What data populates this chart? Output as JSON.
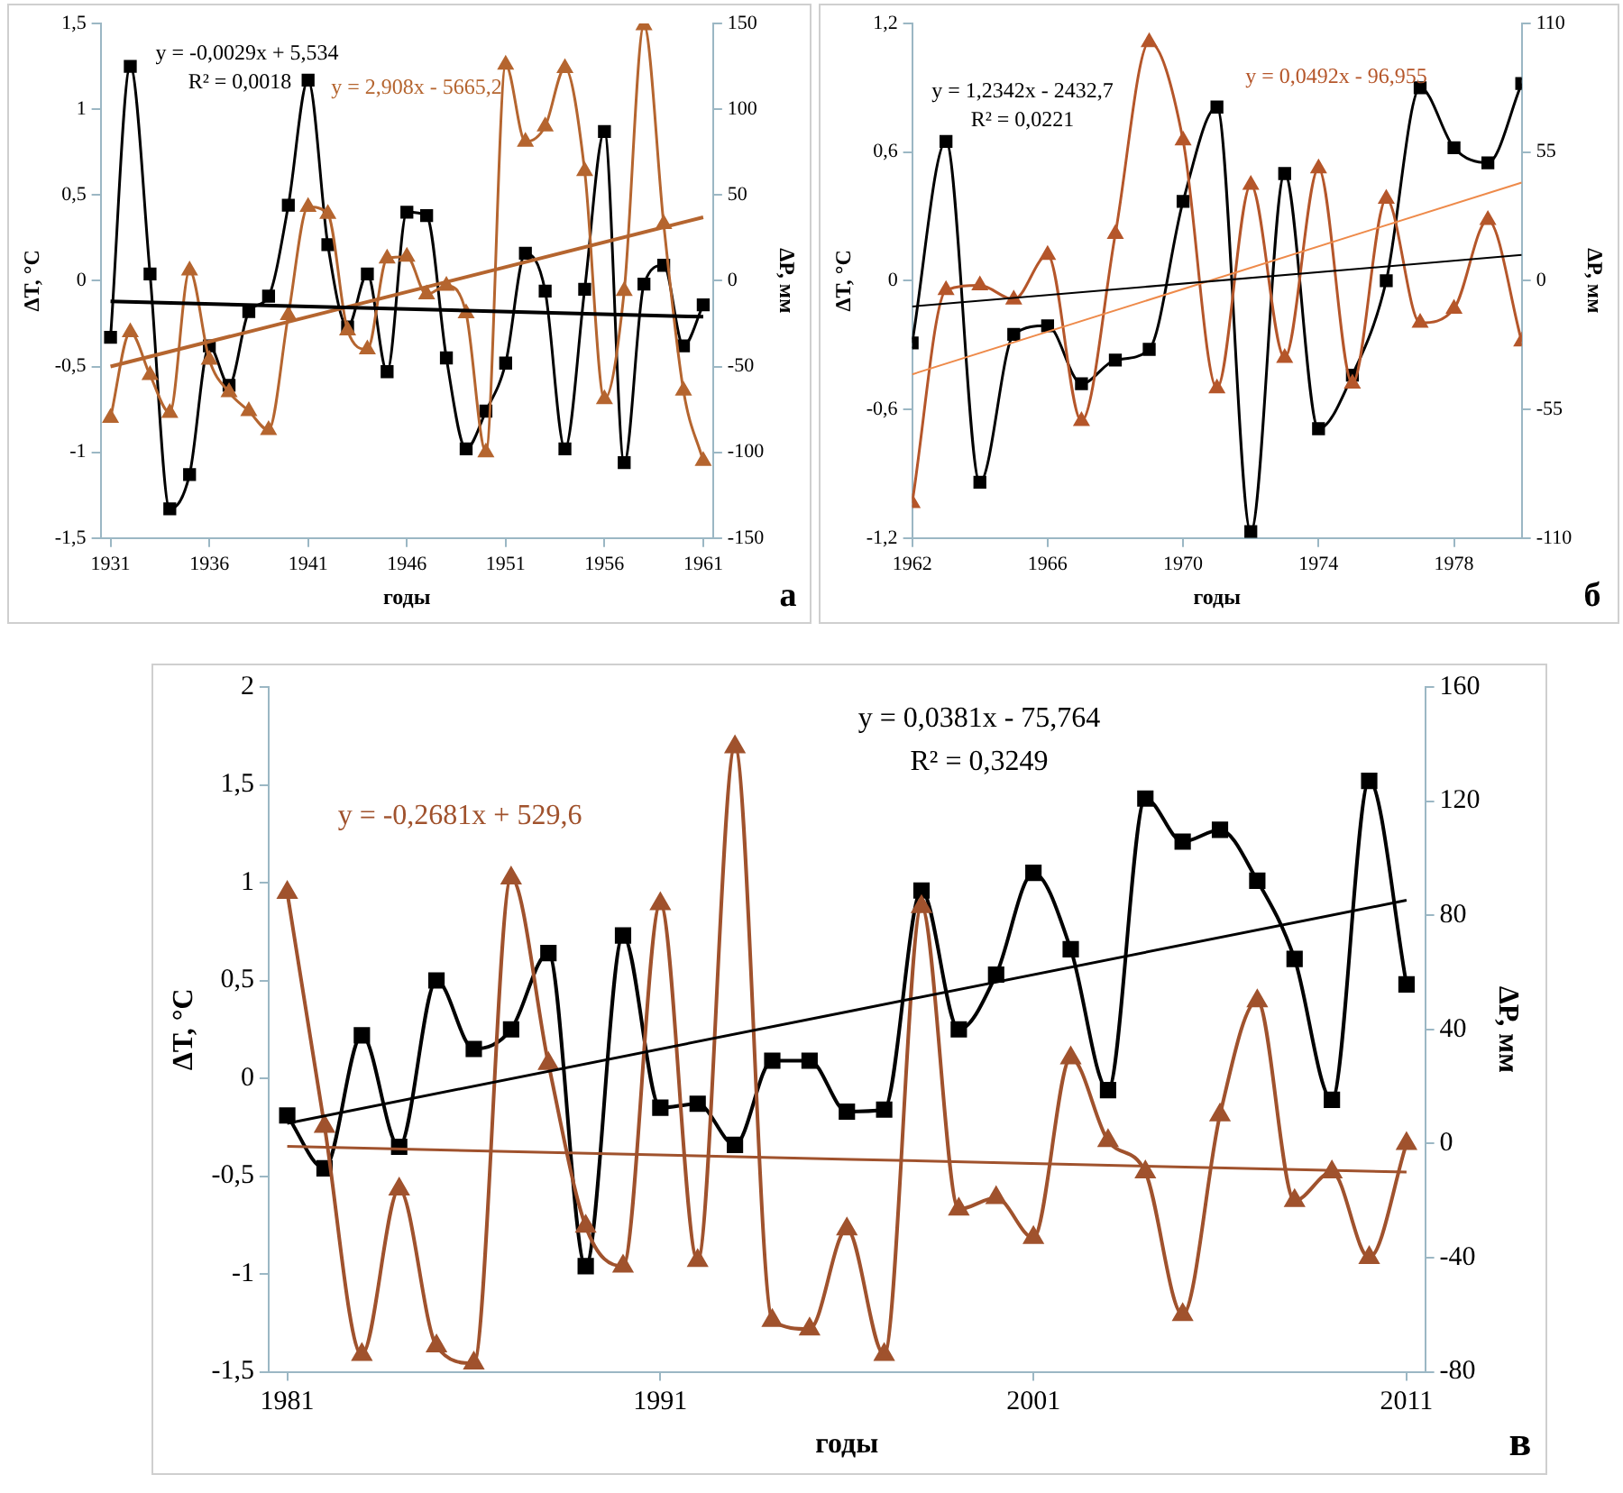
{
  "chart_data": [
    {
      "type": "line",
      "xlabel": "годы",
      "ylabel": "ΔT, °C",
      "y2label": "ΔP, мм",
      "xlim": [
        1930.5,
        1961.5
      ],
      "xticks": [
        1931,
        1936,
        1941,
        1946,
        1951,
        1956,
        1961
      ],
      "ylim": [
        -1.5,
        1.5
      ],
      "yticks": [
        {
          "value": -1.5,
          "label": "-1,5"
        },
        -1,
        {
          "value": -0.5,
          "label": "-0,5"
        },
        0,
        {
          "value": 0.5,
          "label": "0,5"
        },
        1,
        {
          "value": 1.5,
          "label": "1,5"
        }
      ],
      "y2lim": [
        -150,
        150
      ],
      "y2ticks": [
        -150,
        -100,
        -50,
        0,
        50,
        100,
        150
      ],
      "grid": false,
      "legend": false,
      "annotations": [
        "y = -0,0029x + 5,534",
        "R² = 0,0018",
        "y = 2,908x - 5665,2",
        "а"
      ],
      "x": [
        1931,
        1932,
        1933,
        1934,
        1935,
        1936,
        1937,
        1938,
        1939,
        1940,
        1941,
        1942,
        1943,
        1944,
        1945,
        1946,
        1947,
        1948,
        1949,
        1950,
        1951,
        1952,
        1953,
        1954,
        1955,
        1956,
        1957,
        1958,
        1959,
        1960,
        1961
      ],
      "series": [
        {
          "color": "#000000",
          "marker": "square",
          "values": [
            -0.33,
            1.25,
            0.04,
            -1.33,
            -1.13,
            -0.38,
            -0.61,
            -0.18,
            -0.09,
            0.44,
            1.17,
            0.21,
            -0.27,
            0.04,
            -0.53,
            0.4,
            0.38,
            -0.45,
            -0.98,
            -0.76,
            -0.48,
            0.16,
            -0.06,
            -0.98,
            -0.05,
            0.87,
            -1.06,
            -0.02,
            0.09,
            -0.38,
            -0.14
          ]
        },
        {
          "color": "#b5652f",
          "marker": "triangle",
          "axis": "y2",
          "values": [
            -80,
            -30,
            -55,
            -77,
            6,
            -46,
            -65,
            -76,
            -87,
            -20,
            43,
            39,
            -29,
            -40,
            13,
            14,
            -8,
            -3,
            -19,
            -100,
            126,
            81,
            90,
            124,
            64,
            -69,
            -6,
            149,
            33,
            -64,
            -105
          ]
        },
        {
          "color": "#000000",
          "marker": "none",
          "x": [
            1931,
            1961
          ],
          "values": [
            -0.12,
            -0.21
          ]
        },
        {
          "color": "#b5652f",
          "marker": "none",
          "axis": "y2",
          "x": [
            1931,
            1961
          ],
          "values": [
            -50,
            37
          ]
        }
      ]
    },
    {
      "type": "line",
      "xlabel": "годы",
      "ylabel": "ΔT, °C",
      "y2label": "ΔP, мм",
      "xlim": [
        1962,
        1980
      ],
      "xticks": [
        1962,
        1966,
        1970,
        1974,
        1978
      ],
      "ylim": [
        -1.2,
        1.2
      ],
      "yticks": [
        {
          "value": -1.2,
          "label": "-1,2"
        },
        {
          "value": -0.6,
          "label": "-0,6"
        },
        0,
        {
          "value": 0.6,
          "label": "0,6"
        },
        {
          "value": 1.2,
          "label": "1,2"
        }
      ],
      "y2lim": [
        -110,
        110
      ],
      "y2ticks": [
        -110,
        -55,
        0,
        55,
        110
      ],
      "grid": false,
      "legend": false,
      "annotations": [
        "y = 1,2342x - 2432,7",
        "R² = 0,0221",
        "y = 0,0492x - 96,955",
        "б"
      ],
      "x": [
        1962,
        1963,
        1964,
        1965,
        1966,
        1967,
        1968,
        1969,
        1970,
        1971,
        1972,
        1973,
        1974,
        1975,
        1976,
        1977,
        1978,
        1979,
        1980
      ],
      "series": [
        {
          "color": "#000000",
          "marker": "square",
          "values": [
            -0.29,
            0.65,
            -0.94,
            -0.25,
            -0.21,
            -0.48,
            -0.37,
            -0.32,
            0.37,
            0.81,
            -1.17,
            0.5,
            -0.69,
            -0.44,
            0,
            0.9,
            0.62,
            0.55,
            0.92
          ]
        },
        {
          "color": "#b5562a",
          "marker": "triangle",
          "axis": "y2",
          "values": [
            -95,
            -4,
            -2,
            -8,
            11,
            -60,
            20,
            102,
            60,
            -46,
            41,
            -33,
            48,
            -44,
            35,
            -18,
            -12,
            26,
            -26
          ]
        },
        {
          "color": "#000000",
          "marker": "none",
          "x": [
            1962,
            1980
          ],
          "values": [
            -0.12,
            0.12
          ]
        },
        {
          "color": "#ee8a4a",
          "marker": "none",
          "axis": "y2",
          "x": [
            1962,
            1980
          ],
          "values": [
            -40,
            42
          ]
        }
      ]
    },
    {
      "type": "line",
      "xlabel": "годы",
      "ylabel": "ΔT, °C",
      "y2label": "ΔP, мм",
      "xlim": [
        1980.5,
        2011.5
      ],
      "xticks": [
        1981,
        1991,
        2001,
        2011
      ],
      "ylim": [
        -1.5,
        2
      ],
      "yticks": [
        {
          "value": -1.5,
          "label": "-1,5"
        },
        -1,
        {
          "value": -0.5,
          "label": "-0,5"
        },
        0,
        {
          "value": 0.5,
          "label": "0,5"
        },
        1,
        {
          "value": 1.5,
          "label": "1,5"
        },
        2
      ],
      "y2lim": [
        -80,
        160
      ],
      "y2ticks": [
        -80,
        -40,
        0,
        40,
        80,
        120,
        160
      ],
      "grid": false,
      "legend": false,
      "annotations": [
        "y = 0,0381x - 75,764",
        "R² = 0,3249",
        "y = -0,2681x + 529,6",
        "в"
      ],
      "x": [
        1981,
        1982,
        1983,
        1984,
        1985,
        1986,
        1987,
        1988,
        1989,
        1990,
        1991,
        1992,
        1993,
        1994,
        1995,
        1996,
        1997,
        1998,
        1999,
        2000,
        2001,
        2002,
        2003,
        2004,
        2005,
        2006,
        2007,
        2008,
        2009,
        2010,
        2011
      ],
      "series": [
        {
          "color": "#000000",
          "marker": "square",
          "values": [
            -0.19,
            -0.46,
            0.22,
            -0.35,
            0.5,
            0.15,
            0.25,
            0.64,
            -0.96,
            0.73,
            -0.15,
            -0.13,
            -0.34,
            0.09,
            0.09,
            -0.17,
            -0.16,
            0.96,
            0.25,
            0.53,
            1.05,
            0.66,
            -0.06,
            1.43,
            1.21,
            1.27,
            1.01,
            0.61,
            -0.11,
            1.52,
            0.48
          ]
        },
        {
          "color": "#a0522d",
          "marker": "triangle",
          "axis": "y2",
          "values": [
            88,
            6,
            -74,
            -16,
            -71,
            -77,
            93,
            28,
            -29,
            -43,
            84,
            -41,
            139,
            -62,
            -65,
            -30,
            -74,
            83,
            -23,
            -19,
            -33,
            30,
            1,
            -10,
            -60,
            10,
            50,
            -20,
            -10,
            -40,
            0
          ]
        },
        {
          "color": "#000000",
          "marker": "none",
          "x": [
            1981,
            2011
          ],
          "values": [
            -0.23,
            0.91
          ]
        },
        {
          "color": "#a0522d",
          "marker": "none",
          "axis": "y2",
          "x": [
            1981,
            2011
          ],
          "values": [
            -1,
            -10
          ]
        }
      ]
    }
  ]
}
